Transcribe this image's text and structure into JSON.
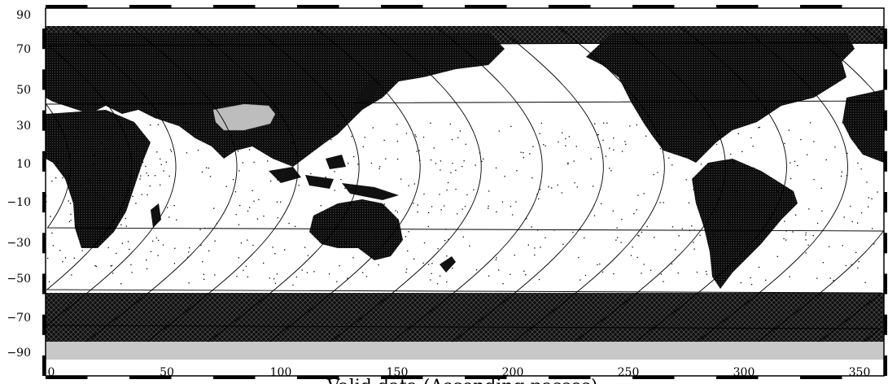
{
  "figure": {
    "type": "map",
    "projection": "equirectangular",
    "caption": "Valid data (Ascending passes)",
    "colors": {
      "land": "#111111",
      "ocean": "#ffffff",
      "ice": "#1a1a1a",
      "no_data_band": "#c8c8c8",
      "highlight_patch": "#bdbdbd",
      "tracks": "#000000",
      "frame": "#000000"
    }
  },
  "axes": {
    "x_range": [
      0,
      360
    ],
    "y_range": [
      -90,
      90
    ],
    "x_ticks": [
      0,
      50,
      100,
      150,
      200,
      250,
      300,
      350
    ],
    "y_ticks": [
      90,
      70,
      50,
      30,
      10,
      -10,
      -30,
      -50,
      -70,
      -90
    ],
    "x_tick_labels": [
      "0",
      "50",
      "100",
      "150",
      "200",
      "250",
      "300",
      "350"
    ],
    "y_tick_labels": [
      "90",
      "70",
      "50",
      "30",
      "10",
      "−10",
      "−30",
      "−50",
      "−70",
      "−90"
    ]
  },
  "chart_data": {
    "type": "map",
    "title": "Valid data (Ascending passes)",
    "xlabel": "",
    "ylabel": "",
    "xlim": [
      0,
      360
    ],
    "ylim": [
      -90,
      90
    ],
    "grid": false,
    "graticule_ticks_x": [
      0,
      50,
      100,
      150,
      200,
      250,
      300,
      350
    ],
    "graticule_ticks_y": [
      90,
      70,
      50,
      30,
      10,
      -10,
      -30,
      -50,
      -70,
      -90
    ]
  }
}
